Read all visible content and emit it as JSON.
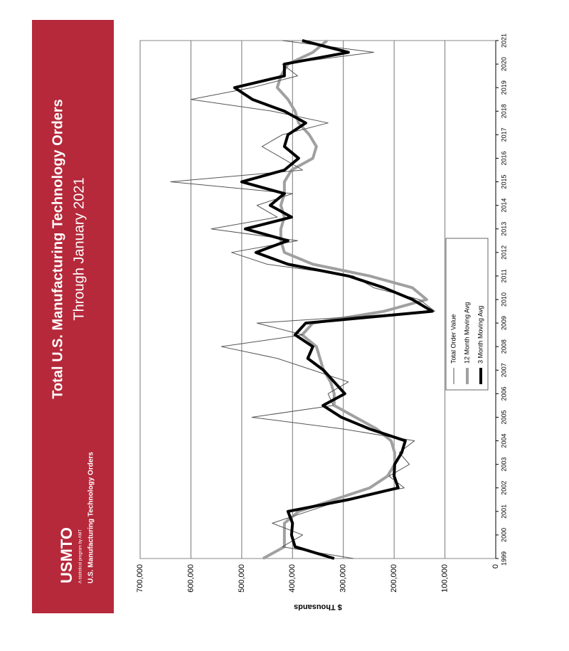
{
  "header": {
    "logo": "USMTO",
    "tagline": "A statistical program by AMT",
    "program": "U.S. Manufacturing Technology Orders"
  },
  "chart_data": {
    "type": "line",
    "title": "Total U.S. Manufacturing Technology Orders",
    "subtitle": "Through January 2021",
    "y_label": "$ Thousands",
    "x": [
      1999,
      1999.5,
      2000,
      2000.5,
      2001,
      2001.5,
      2002,
      2002.5,
      2003,
      2003.5,
      2004,
      2004.5,
      2005,
      2005.5,
      2006,
      2006.5,
      2007,
      2007.5,
      2008,
      2008.5,
      2009,
      2009.5,
      2010,
      2010.5,
      2011,
      2011.5,
      2012,
      2012.5,
      2013,
      2013.5,
      2014,
      2014.5,
      2015,
      2015.5,
      2016,
      2016.5,
      2017,
      2017.5,
      2018,
      2018.5,
      2019,
      2019.5,
      2020,
      2020.5,
      2021
    ],
    "series": [
      {
        "name": "Total Order Value",
        "color": "#555555",
        "width": 1,
        "values": [
          280000,
          420000,
          380000,
          440000,
          370000,
          300000,
          180000,
          210000,
          170000,
          190000,
          160000,
          300000,
          480000,
          320000,
          330000,
          290000,
          360000,
          430000,
          540000,
          380000,
          470000,
          120000,
          150000,
          240000,
          280000,
          450000,
          520000,
          390000,
          560000,
          430000,
          470000,
          400000,
          640000,
          380000,
          420000,
          460000,
          420000,
          330000,
          440000,
          600000,
          480000,
          390000,
          420000,
          240000,
          420000
        ]
      },
      {
        "name": "12 Month Moving Avg",
        "color": "#a0a0a0",
        "width": 4,
        "values": [
          458000,
          416000,
          416000,
          416000,
          388000,
          318000,
          248000,
          213000,
          199000,
          199000,
          206000,
          234000,
          276000,
          318000,
          318000,
          325000,
          339000,
          346000,
          353000,
          381000,
          360000,
          220000,
          136000,
          164000,
          248000,
          360000,
          416000,
          423000,
          423000,
          416000,
          423000,
          416000,
          416000,
          402000,
          360000,
          353000,
          367000,
          388000,
          395000,
          409000,
          430000,
          423000,
          409000,
          360000,
          332000
        ]
      },
      {
        "name": "3 Month Moving Avg",
        "color": "#000000",
        "width": 4,
        "values": [
          318000,
          395000,
          402000,
          400000,
          409000,
          290000,
          192000,
          200000,
          199000,
          185000,
          178000,
          248000,
          304000,
          340000,
          297000,
          318000,
          339000,
          370000,
          360000,
          395000,
          374000,
          125000,
          164000,
          220000,
          290000,
          409000,
          472000,
          409000,
          493000,
          402000,
          444000,
          416000,
          500000,
          416000,
          388000,
          416000,
          409000,
          374000,
          416000,
          479000,
          514000,
          416000,
          416000,
          290000,
          381000
        ]
      }
    ],
    "xlim": [
      1999,
      2021
    ],
    "xticks": [
      1999,
      2000,
      2001,
      2002,
      2003,
      2004,
      2005,
      2006,
      2007,
      2008,
      2009,
      2010,
      2011,
      2012,
      2013,
      2014,
      2015,
      2016,
      2017,
      2018,
      2019,
      2020,
      2021
    ],
    "ylim": [
      0,
      700000
    ],
    "yticks": [
      0,
      {
        "value": 100000,
        "label": "100,000"
      },
      {
        "value": 200000,
        "label": "200,000"
      },
      {
        "value": 300000,
        "label": "300,000"
      },
      {
        "value": 400000,
        "label": "400,000"
      },
      {
        "value": 500000,
        "label": "500,000"
      },
      {
        "value": 600000,
        "label": "600,000"
      },
      {
        "value": 700000,
        "label": "700,000"
      }
    ],
    "grid": true
  }
}
